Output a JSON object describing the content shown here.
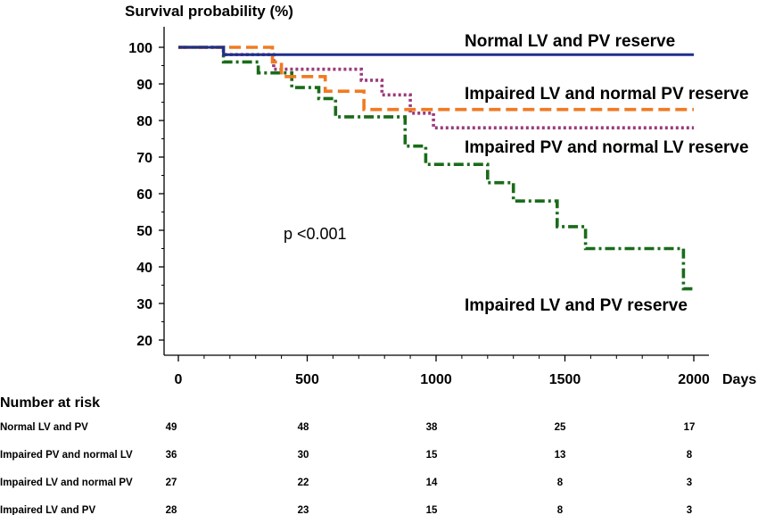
{
  "chart_data": {
    "type": "line",
    "step": true,
    "ylabel": "Survival probability (%)",
    "xlabel": "Days",
    "xlim": [
      0,
      2000
    ],
    "ylim": [
      20,
      100
    ],
    "xticks": [
      0,
      500,
      1000,
      1500,
      2000
    ],
    "xtick_labels": [
      "0",
      "500",
      "1000",
      "1500",
      "2000"
    ],
    "yticks": [
      20,
      30,
      40,
      50,
      60,
      70,
      80,
      90,
      100
    ],
    "ytick_labels": [
      "20",
      "30",
      "40",
      "50",
      "60",
      "70",
      "80",
      "90",
      "100"
    ],
    "annotation": "p <0.001",
    "series": [
      {
        "name": "Normal LV and PV reserve",
        "color": "#1f2f8a",
        "dash": "solid",
        "points": [
          [
            0,
            100
          ],
          [
            175,
            100
          ],
          [
            175,
            98
          ],
          [
            2000,
            98
          ]
        ]
      },
      {
        "name": "Impaired LV and normal PV reserve",
        "color": "#f07a22",
        "dash": "dashed",
        "points": [
          [
            0,
            100
          ],
          [
            365,
            100
          ],
          [
            365,
            96
          ],
          [
            400,
            96
          ],
          [
            400,
            92
          ],
          [
            570,
            92
          ],
          [
            570,
            88
          ],
          [
            720,
            88
          ],
          [
            720,
            83
          ],
          [
            2000,
            83
          ]
        ]
      },
      {
        "name": "Impaired PV and normal LV reserve",
        "color": "#9b3a7a",
        "dash": "dotted",
        "points": [
          [
            0,
            100
          ],
          [
            175,
            100
          ],
          [
            175,
            98
          ],
          [
            370,
            98
          ],
          [
            370,
            94
          ],
          [
            710,
            94
          ],
          [
            710,
            91
          ],
          [
            790,
            91
          ],
          [
            790,
            87
          ],
          [
            900,
            87
          ],
          [
            900,
            82
          ],
          [
            990,
            82
          ],
          [
            990,
            78
          ],
          [
            2000,
            78
          ]
        ]
      },
      {
        "name": "Impaired LV and PV reserve",
        "color": "#1a6b1a",
        "dash": "dashdot",
        "points": [
          [
            0,
            100
          ],
          [
            175,
            100
          ],
          [
            175,
            96
          ],
          [
            310,
            96
          ],
          [
            310,
            93
          ],
          [
            440,
            93
          ],
          [
            440,
            89
          ],
          [
            545,
            89
          ],
          [
            545,
            86
          ],
          [
            610,
            86
          ],
          [
            610,
            81
          ],
          [
            880,
            81
          ],
          [
            880,
            73
          ],
          [
            960,
            73
          ],
          [
            960,
            68
          ],
          [
            1200,
            68
          ],
          [
            1200,
            63
          ],
          [
            1300,
            63
          ],
          [
            1300,
            58
          ],
          [
            1470,
            58
          ],
          [
            1470,
            51
          ],
          [
            1580,
            51
          ],
          [
            1580,
            45
          ],
          [
            1960,
            45
          ],
          [
            1960,
            34
          ],
          [
            2000,
            34
          ]
        ]
      }
    ],
    "risk_table": {
      "title": "Number at risk",
      "rows": [
        {
          "label": "Normal LV and PV",
          "values": [
            "49",
            "48",
            "38",
            "25",
            "17"
          ]
        },
        {
          "label": "Impaired PV and normal LV",
          "values": [
            "36",
            "30",
            "15",
            "13",
            "8"
          ]
        },
        {
          "label": "Impaired LV and normal PV",
          "values": [
            "27",
            "22",
            "14",
            "8",
            "3"
          ]
        },
        {
          "label": "Impaired LV and PV",
          "values": [
            "28",
            "23",
            "15",
            "8",
            "3"
          ]
        }
      ]
    }
  }
}
